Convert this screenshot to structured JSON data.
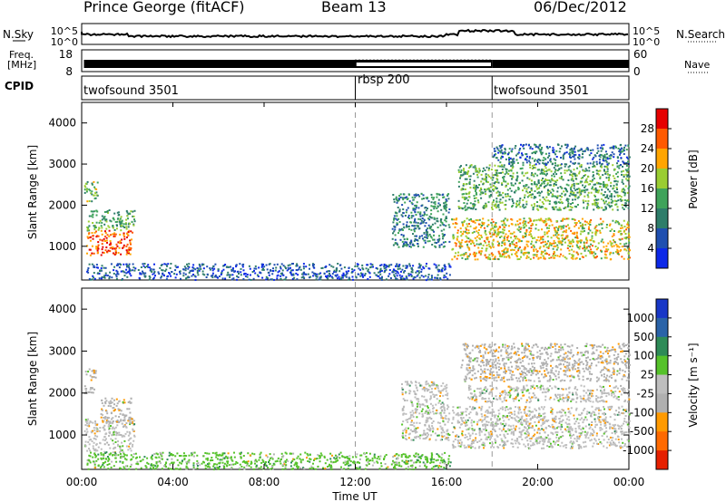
{
  "header": {
    "station": "Prince George (fitACF)",
    "beam": "Beam 13",
    "date": "06/Dec/2012"
  },
  "summary_panel": {
    "nsky_label": "N.Sky",
    "nsky_ticks": [
      "10^5",
      "10^0"
    ],
    "nsearch_label": "N.Search",
    "nsearch_ticks": [
      "10^5",
      "10^0"
    ],
    "freq_label_1": "Freq.",
    "freq_label_2": "[MHz]",
    "freq_ticks": [
      "18",
      "8"
    ],
    "nave_label": "Nave",
    "nave_ticks": [
      "60",
      "0"
    ],
    "cpid_label": "CPID"
  },
  "cpid_segments": [
    {
      "label": "twofsound 3501",
      "start_hour": 0,
      "end_hour": 12
    },
    {
      "label": "rbsp 200",
      "start_hour": 12,
      "end_hour": 18
    },
    {
      "label": "twofsound 3501",
      "start_hour": 18,
      "end_hour": 24
    }
  ],
  "colors": {
    "power_scale": [
      "#0c28e8",
      "#1f4fb0",
      "#2e7d6a",
      "#3fa35a",
      "#9acd32",
      "#ffa500",
      "#ff5a00",
      "#e60000"
    ],
    "velocity_scale": [
      "#1837c7",
      "#2a63a8",
      "#2e8b57",
      "#55c22a",
      "#bebebe",
      "#b0b0b0",
      "#ff9a00",
      "#ff6a00",
      "#e62000"
    ]
  },
  "chart_data": [
    {
      "type": "heatmap",
      "title": "",
      "xlabel": "Time UT",
      "ylabel": "Slant Range [km]",
      "x_range_hours": [
        0,
        24
      ],
      "x_ticks": [
        "00:00",
        "04:00",
        "08:00",
        "12:00",
        "16:00",
        "20:00",
        "00:00"
      ],
      "ylim": [
        180,
        4500
      ],
      "y_ticks": [
        "1000",
        "2000",
        "3000",
        "4000"
      ],
      "colorbar_label": "Power [dB]",
      "colorbar_ticks": [
        "4",
        "8",
        "12",
        "16",
        "20",
        "24",
        "28"
      ],
      "scatter_regions": [
        {
          "t0": 0.2,
          "t1": 2.2,
          "r0": 800,
          "r1": 1400,
          "value": "26"
        },
        {
          "t0": 0.2,
          "t1": 2.3,
          "r0": 1400,
          "r1": 1900,
          "value": "14"
        },
        {
          "t0": 0.1,
          "t1": 0.7,
          "r0": 2100,
          "r1": 2600,
          "value": "16"
        },
        {
          "t0": 0.2,
          "t1": 16.2,
          "r0": 200,
          "r1": 600,
          "value": "6"
        },
        {
          "t0": 13.6,
          "t1": 16.1,
          "r0": 1000,
          "r1": 2300,
          "value": "10"
        },
        {
          "t0": 16.2,
          "t1": 24,
          "r0": 700,
          "r1": 1700,
          "value": "20"
        },
        {
          "t0": 16.5,
          "t1": 24,
          "r0": 1900,
          "r1": 3000,
          "value": "14"
        },
        {
          "t0": 18,
          "t1": 24,
          "r0": 3000,
          "r1": 3500,
          "value": "8"
        }
      ]
    },
    {
      "type": "heatmap",
      "title": "",
      "xlabel": "Time UT",
      "ylabel": "Slant Range [km]",
      "x_range_hours": [
        0,
        24
      ],
      "x_ticks": [
        "00:00",
        "04:00",
        "08:00",
        "12:00",
        "16:00",
        "20:00",
        "00:00"
      ],
      "ylim": [
        180,
        4500
      ],
      "y_ticks": [
        "1000",
        "2000",
        "3000",
        "4000"
      ],
      "colorbar_label": "Velocity [m s⁻¹]",
      "colorbar_ticks": [
        "1000",
        "500",
        "100",
        "25",
        "-25",
        "-100",
        "-500",
        "-1000"
      ],
      "scatter_regions": [
        {
          "t0": 0.1,
          "t1": 2.3,
          "r0": 600,
          "r1": 1400,
          "value": "-25"
        },
        {
          "t0": 0.8,
          "t1": 2.2,
          "r0": 1300,
          "r1": 1900,
          "value": "-100"
        },
        {
          "t0": 0.1,
          "t1": 0.6,
          "r0": 2000,
          "r1": 2600,
          "value": "-100"
        },
        {
          "t0": 0.2,
          "t1": 16.2,
          "r0": 200,
          "r1": 600,
          "value": "25"
        },
        {
          "t0": 14,
          "t1": 16.1,
          "r0": 900,
          "r1": 2300,
          "value": "-25"
        },
        {
          "t0": 16.2,
          "t1": 24,
          "r0": 700,
          "r1": 1700,
          "value": "-25"
        },
        {
          "t0": 16.8,
          "t1": 24,
          "r0": 1800,
          "r1": 2200,
          "value": "-25"
        },
        {
          "t0": 16.6,
          "t1": 24,
          "r0": 2300,
          "r1": 3200,
          "value": "-100"
        }
      ]
    }
  ]
}
